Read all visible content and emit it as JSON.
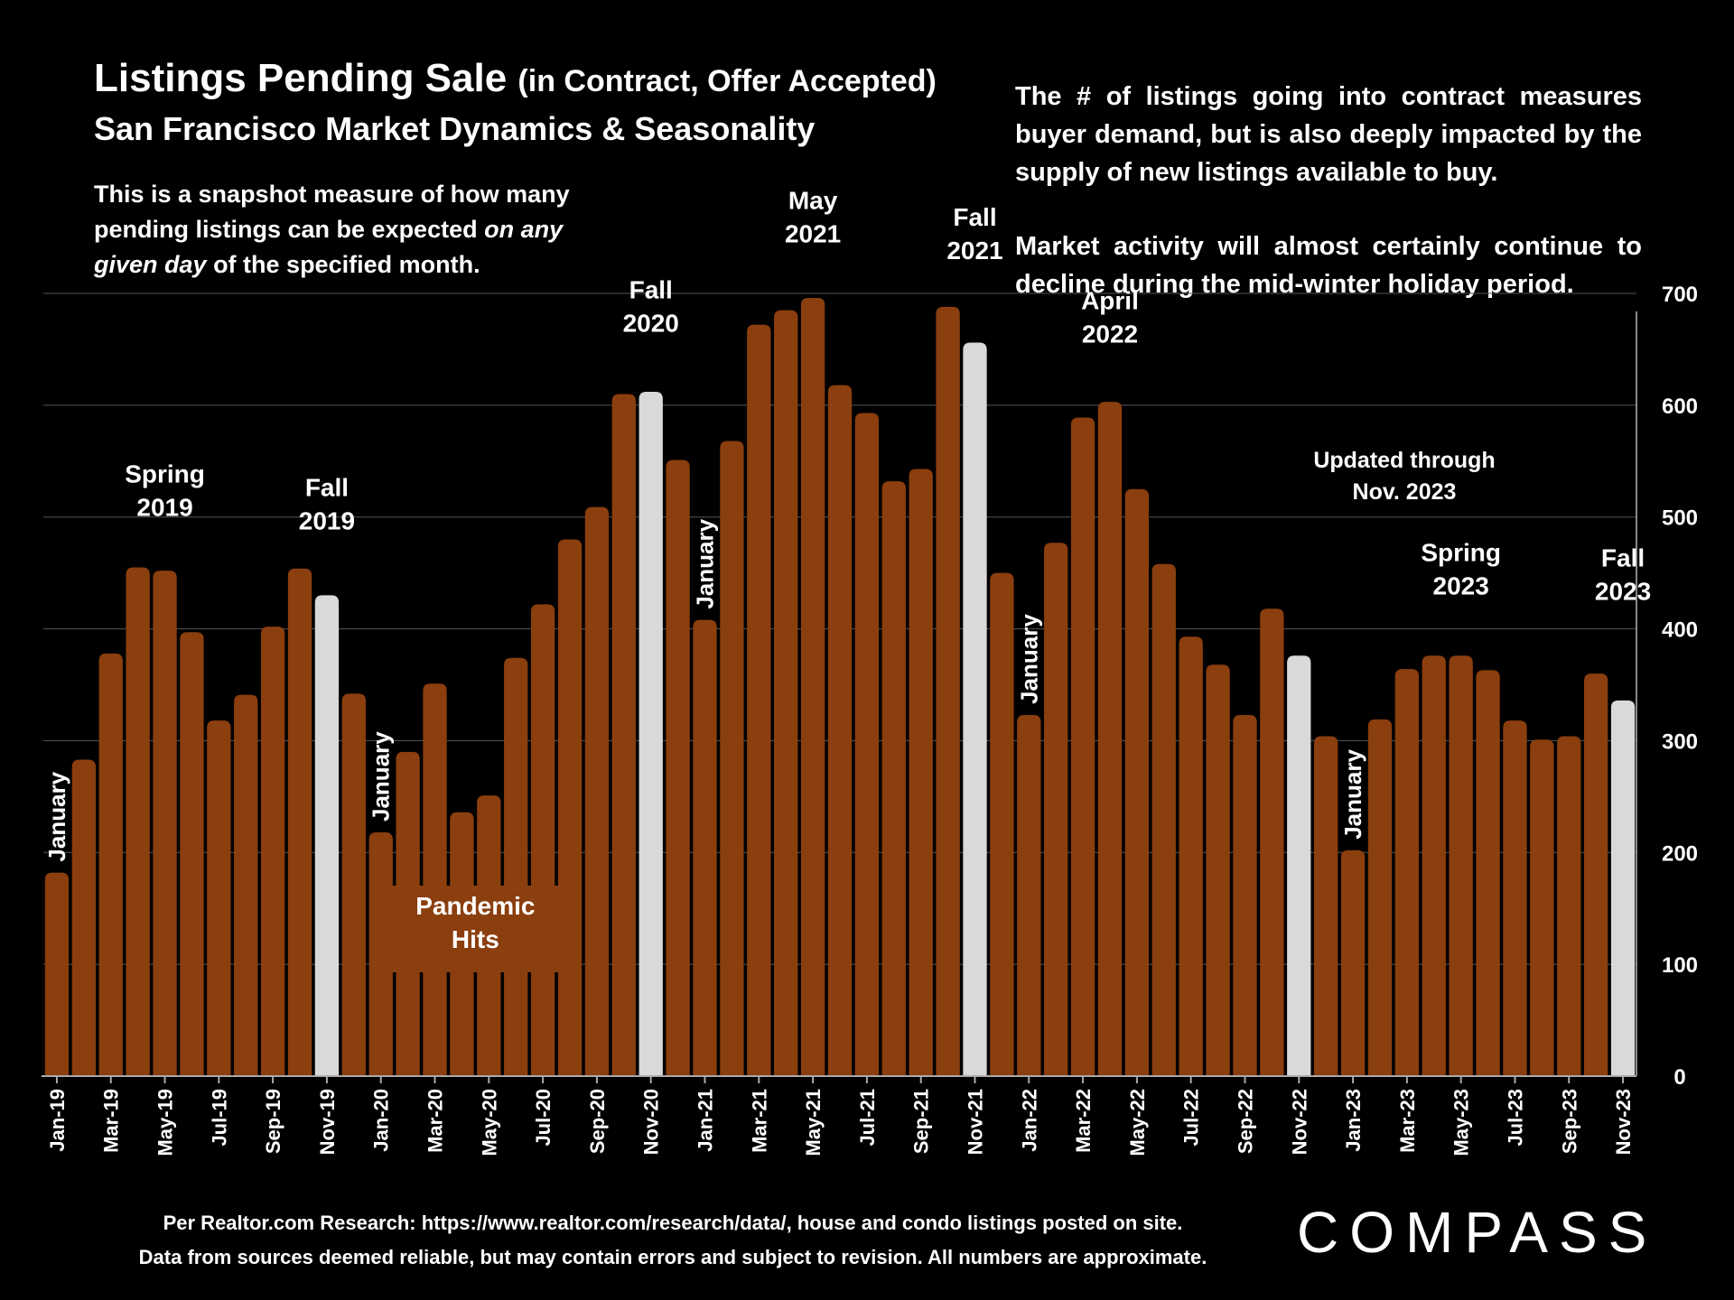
{
  "title": {
    "main": "Listings Pending Sale",
    "paren": "(in Contract, Offer Accepted)"
  },
  "subtitle": "San Francisco Market Dynamics & Seasonality",
  "snapshot": {
    "part1": "This is a snapshot measure of how many pending listings can be expected",
    "italic": "on any given day",
    "part2": "of the specified month."
  },
  "commentary": {
    "p1": "The # of listings going into contract measures buyer demand, but is also deeply impacted by the supply of new listings available to buy.",
    "p2": "Market activity will almost certainly continue to decline during the mid-winter holiday period."
  },
  "updated_note": {
    "line1": "Updated through",
    "line2": "Nov. 2023"
  },
  "footer": {
    "line1": "Per Realtor.com Research:  https://www.realtor.com/research/data/, house and condo listings posted on site.",
    "line2": "Data from sources deemed reliable, but may contain errors and subject to revision. All numbers are approximate."
  },
  "logo": "COMPASS",
  "colors": {
    "bar": "#8b3e0e",
    "highlight": "#d9d9d9",
    "grid": "#555555",
    "background": "#000000"
  },
  "chart_data": {
    "type": "bar",
    "title": "Listings Pending Sale (in Contract, Offer Accepted)",
    "ylim": [
      0,
      700
    ],
    "yticks": [
      0,
      100,
      200,
      300,
      400,
      500,
      600,
      700
    ],
    "y_axis_side": "right",
    "grid": true,
    "categories": [
      "Jan-19",
      "Feb-19",
      "Mar-19",
      "Apr-19",
      "May-19",
      "Jun-19",
      "Jul-19",
      "Aug-19",
      "Sep-19",
      "Oct-19",
      "Nov-19",
      "Dec-19",
      "Jan-20",
      "Feb-20",
      "Mar-20",
      "Apr-20",
      "May-20",
      "Jun-20",
      "Jul-20",
      "Aug-20",
      "Sep-20",
      "Oct-20",
      "Nov-20",
      "Dec-20",
      "Jan-21",
      "Feb-21",
      "Mar-21",
      "Apr-21",
      "May-21",
      "Jun-21",
      "Jul-21",
      "Aug-21",
      "Sep-21",
      "Oct-21",
      "Nov-21",
      "Dec-21",
      "Jan-22",
      "Feb-22",
      "Mar-22",
      "Apr-22",
      "May-22",
      "Jun-22",
      "Jul-22",
      "Aug-22",
      "Sep-22",
      "Oct-22",
      "Nov-22",
      "Dec-22",
      "Jan-23",
      "Feb-23",
      "Mar-23",
      "Apr-23",
      "May-23",
      "Jun-23",
      "Jul-23",
      "Aug-23",
      "Sep-23",
      "Oct-23",
      "Nov-23"
    ],
    "values": [
      182,
      283,
      378,
      455,
      452,
      397,
      318,
      341,
      402,
      454,
      430,
      342,
      218,
      290,
      351,
      236,
      251,
      374,
      422,
      480,
      509,
      610,
      612,
      551,
      408,
      568,
      672,
      685,
      696,
      618,
      593,
      532,
      543,
      688,
      656,
      450,
      323,
      477,
      589,
      603,
      525,
      458,
      393,
      368,
      323,
      418,
      376,
      304,
      202,
      319,
      364,
      376,
      376,
      363,
      318,
      301,
      304,
      360,
      336
    ],
    "highlight_categories": [
      "Nov-19",
      "Nov-20",
      "Nov-21",
      "Nov-22",
      "Nov-23"
    ],
    "x_tick_labels": [
      "Jan-19",
      "Mar-19",
      "May-19",
      "Jul-19",
      "Sep-19",
      "Nov-19",
      "Jan-20",
      "Mar-20",
      "May-20",
      "Jul-20",
      "Sep-20",
      "Nov-20",
      "Jan-21",
      "Mar-21",
      "May-21",
      "Jul-21",
      "Sep-21",
      "Nov-21",
      "Jan-22",
      "Mar-22",
      "May-22",
      "Jul-22",
      "Sep-22",
      "Nov-22",
      "Jan-23",
      "Mar-23",
      "May-23",
      "Jul-23",
      "Sep-23",
      "Nov-23"
    ],
    "annotations": [
      {
        "text": [
          "Spring",
          "2019"
        ],
        "category": "May-19",
        "value": 500
      },
      {
        "text": [
          "Fall",
          "2019"
        ],
        "category": "Nov-19",
        "value": 488
      },
      {
        "text": [
          "Fall",
          "2020"
        ],
        "category": "Nov-20",
        "value": 665
      },
      {
        "text": [
          "May",
          "2021"
        ],
        "category": "May-21",
        "value": 745
      },
      {
        "text": [
          "Fall",
          "2021"
        ],
        "category": "Nov-21",
        "value": 730
      },
      {
        "text": [
          "April",
          "2022"
        ],
        "category": "Apr-22",
        "value": 655
      },
      {
        "text": [
          "Spring",
          "2023"
        ],
        "category": "May-23",
        "value": 430
      },
      {
        "text": [
          "Fall",
          "2023"
        ],
        "category": "Nov-23",
        "value": 425
      },
      {
        "text": [
          "Pandemic",
          "Hits"
        ],
        "category": "Apr-20",
        "value": 130,
        "boxed": true
      }
    ],
    "vertical_labels": [
      {
        "text": "January",
        "category": "Jan-19"
      },
      {
        "text": "January",
        "category": "Jan-20"
      },
      {
        "text": "January",
        "category": "Jan-21"
      },
      {
        "text": "January",
        "category": "Jan-22"
      },
      {
        "text": "January",
        "category": "Jan-23"
      }
    ]
  }
}
